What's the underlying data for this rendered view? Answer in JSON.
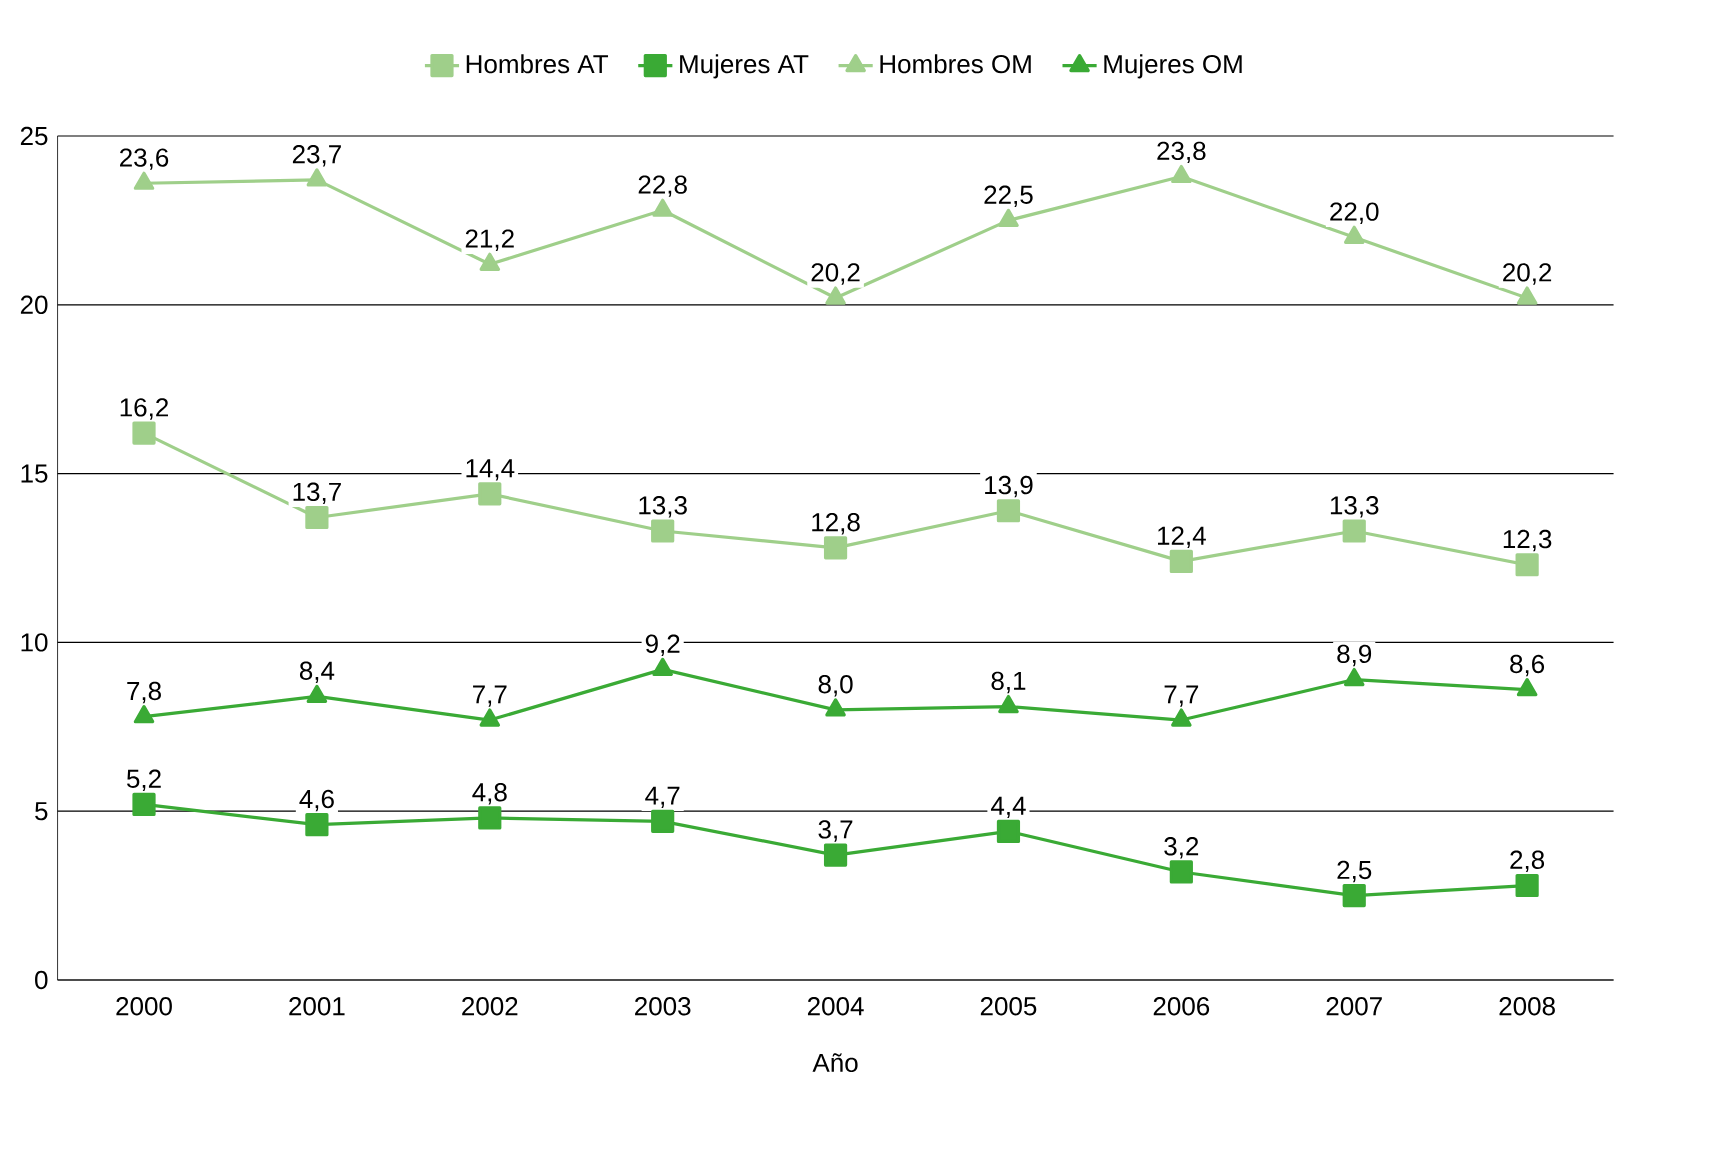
{
  "chart_data": {
    "type": "line",
    "xlabel": "Año",
    "categories": [
      "2000",
      "2001",
      "2002",
      "2003",
      "2004",
      "2005",
      "2006",
      "2007",
      "2008"
    ],
    "series": [
      {
        "name": "Hombres AT",
        "color": "#9fcf8a",
        "marker": "square",
        "values": [
          16.2,
          13.7,
          14.4,
          13.3,
          12.8,
          13.9,
          12.4,
          13.3,
          12.3
        ],
        "value_labels": [
          "16,2",
          "13,7",
          "14,4",
          "13,3",
          "12,8",
          "13,9",
          "12,4",
          "13,3",
          "12,3"
        ]
      },
      {
        "name": "Mujeres AT",
        "color": "#3aaa35",
        "marker": "square",
        "values": [
          5.2,
          4.6,
          4.8,
          4.7,
          3.7,
          4.4,
          3.2,
          2.5,
          2.8
        ],
        "value_labels": [
          "5,2",
          "4,6",
          "4,8",
          "4,7",
          "3,7",
          "4,4",
          "3,2",
          "2,5",
          "2,8"
        ]
      },
      {
        "name": "Hombres OM",
        "color": "#9fcf8a",
        "marker": "triangle",
        "values": [
          23.6,
          23.7,
          21.2,
          22.8,
          20.2,
          22.5,
          23.8,
          22.0,
          20.2
        ],
        "value_labels": [
          "23,6",
          "23,7",
          "21,2",
          "22,8",
          "20,2",
          "22,5",
          "23,8",
          "22,0",
          "20,2"
        ]
      },
      {
        "name": "Mujeres OM",
        "color": "#3aaa35",
        "marker": "triangle",
        "values": [
          7.8,
          8.4,
          7.7,
          9.2,
          8.0,
          8.1,
          7.7,
          8.9,
          8.6
        ],
        "value_labels": [
          "7,8",
          "8,4",
          "7,7",
          "9,2",
          "8,0",
          "8,1",
          "7,7",
          "8,9",
          "8,6"
        ]
      }
    ],
    "ylim": [
      0,
      25
    ],
    "yticks": [
      0,
      5,
      10,
      15,
      20,
      25
    ],
    "grid": "y",
    "legend": "top"
  }
}
